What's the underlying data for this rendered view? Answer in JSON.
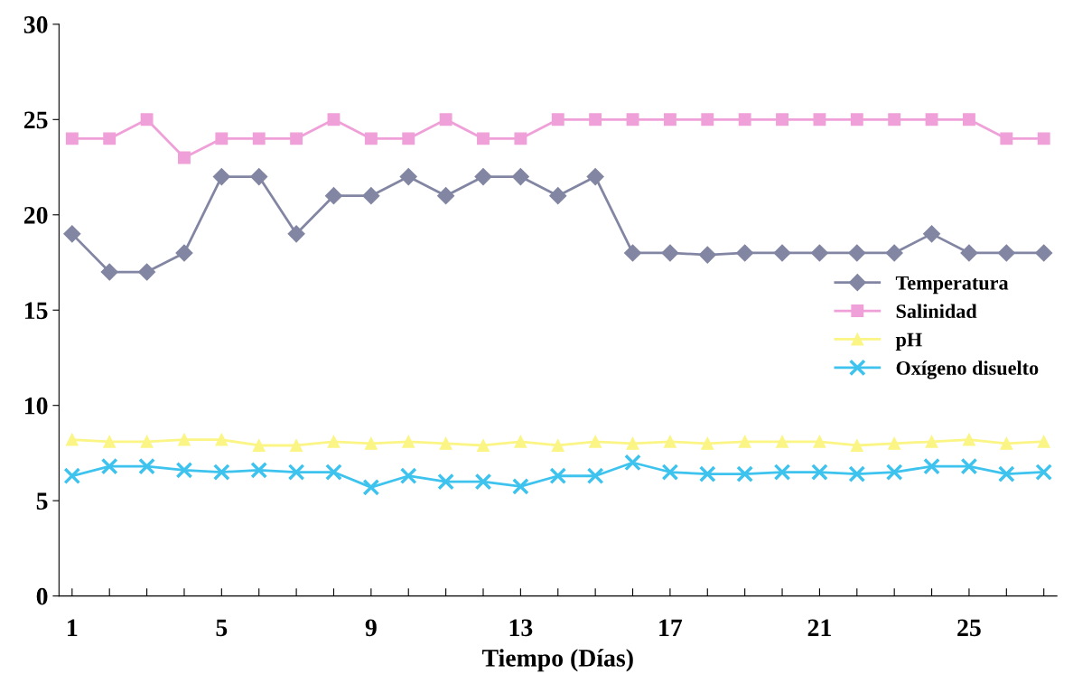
{
  "chart_data": {
    "type": "line",
    "xlabel": "Tiempo (Días)",
    "categories": [
      "1",
      null,
      null,
      null,
      "5",
      null,
      null,
      null,
      "9",
      null,
      null,
      null,
      "13",
      null,
      null,
      null,
      "17",
      null,
      null,
      null,
      "21",
      null,
      null,
      null,
      "25",
      null,
      null
    ],
    "ylim": [
      0,
      30
    ],
    "yticks": [
      0,
      5,
      10,
      15,
      20,
      25,
      30
    ],
    "grid": false,
    "legend": "right",
    "series": [
      {
        "name": "Temperatura",
        "color": "#8286a3",
        "marker": "diamond",
        "values": [
          19,
          17,
          17,
          18,
          22,
          22,
          19,
          21,
          21,
          22,
          21,
          22,
          22,
          21,
          22,
          18,
          18,
          17.9,
          18,
          18,
          18,
          18,
          18,
          19,
          18,
          18,
          18
        ]
      },
      {
        "name": "Salinidad",
        "color": "#f0a0d8",
        "marker": "square",
        "values": [
          24,
          24,
          25,
          23,
          24,
          24,
          24,
          25,
          24,
          24,
          25,
          24,
          24,
          25,
          25,
          25,
          25,
          25,
          25,
          25,
          25,
          25,
          25,
          25,
          25,
          24,
          24
        ]
      },
      {
        "name": "pH",
        "color": "#fbf585",
        "marker": "triangle",
        "values": [
          8.2,
          8.1,
          8.1,
          8.2,
          8.2,
          7.9,
          7.9,
          8.1,
          8.0,
          8.1,
          8.0,
          7.9,
          8.1,
          7.9,
          8.1,
          8.0,
          8.1,
          8.0,
          8.1,
          8.1,
          8.1,
          7.9,
          8.0,
          8.1,
          8.2,
          8.0,
          8.1
        ]
      },
      {
        "name": "Oxígeno disuelto",
        "color": "#3ec3ee",
        "marker": "cross",
        "values": [
          6.3,
          6.8,
          6.8,
          6.6,
          6.5,
          6.6,
          6.5,
          6.5,
          5.7,
          6.3,
          6.0,
          6.0,
          5.75,
          6.3,
          6.3,
          7.0,
          6.5,
          6.4,
          6.4,
          6.5,
          6.5,
          6.4,
          6.5,
          6.8,
          6.8,
          6.4,
          6.5
        ]
      }
    ]
  }
}
